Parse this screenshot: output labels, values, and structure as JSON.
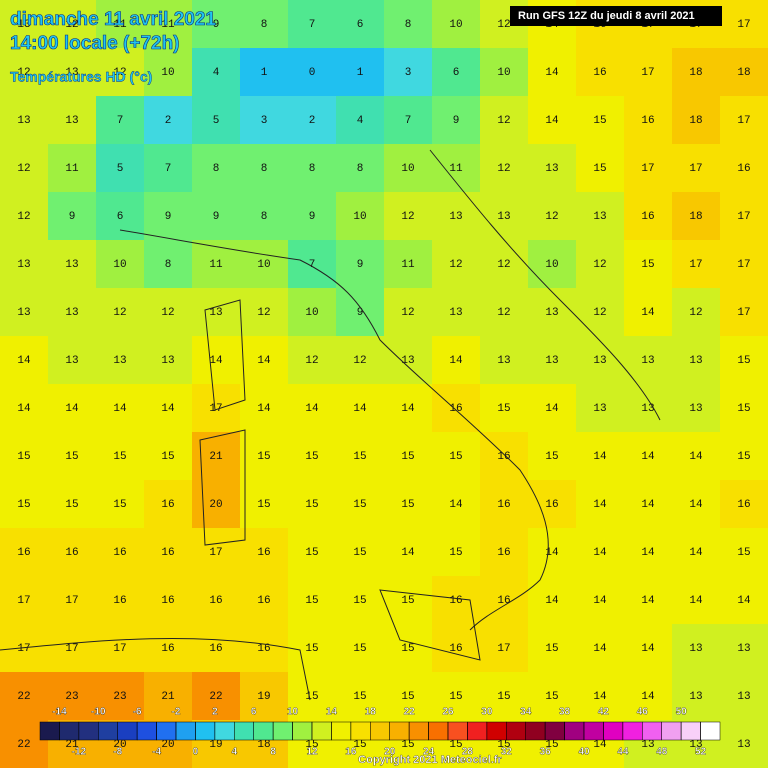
{
  "header": {
    "date": "dimanche 11 avril 2021",
    "time": "14:00 locale (+72h)",
    "field": "Températures HD (°c)",
    "run": "Run GFS 12Z du jeudi 8 avril 2021"
  },
  "temperature_grid": [
    [
      13,
      12,
      11,
      11,
      9,
      8,
      7,
      6,
      8,
      10,
      12,
      14,
      16,
      17,
      17,
      17
    ],
    [
      12,
      13,
      12,
      10,
      4,
      1,
      0,
      1,
      3,
      6,
      10,
      14,
      16,
      17,
      18,
      18
    ],
    [
      13,
      13,
      7,
      2,
      5,
      3,
      2,
      4,
      7,
      9,
      12,
      14,
      15,
      16,
      18,
      17
    ],
    [
      12,
      11,
      5,
      7,
      8,
      8,
      8,
      8,
      10,
      11,
      12,
      13,
      15,
      17,
      17,
      16
    ],
    [
      12,
      9,
      6,
      9,
      9,
      8,
      9,
      10,
      12,
      13,
      13,
      12,
      13,
      16,
      18,
      17
    ],
    [
      13,
      13,
      10,
      8,
      11,
      10,
      7,
      9,
      11,
      12,
      12,
      10,
      12,
      15,
      17,
      17
    ],
    [
      13,
      13,
      12,
      12,
      13,
      12,
      10,
      9,
      12,
      13,
      12,
      13,
      12,
      14,
      12,
      17
    ],
    [
      14,
      13,
      13,
      13,
      14,
      14,
      12,
      12,
      13,
      14,
      13,
      13,
      13,
      13,
      13,
      15
    ],
    [
      14,
      14,
      14,
      14,
      17,
      14,
      14,
      14,
      14,
      16,
      15,
      14,
      13,
      13,
      13,
      15
    ],
    [
      15,
      15,
      15,
      15,
      21,
      15,
      15,
      15,
      15,
      15,
      16,
      15,
      14,
      14,
      14,
      15
    ],
    [
      15,
      15,
      15,
      16,
      20,
      15,
      15,
      15,
      15,
      14,
      16,
      16,
      14,
      14,
      14,
      16
    ],
    [
      16,
      16,
      16,
      16,
      17,
      16,
      15,
      15,
      14,
      15,
      16,
      14,
      14,
      14,
      14,
      15
    ],
    [
      17,
      17,
      16,
      16,
      16,
      16,
      15,
      15,
      15,
      16,
      16,
      14,
      14,
      14,
      14,
      14
    ],
    [
      17,
      17,
      17,
      16,
      16,
      16,
      15,
      15,
      15,
      16,
      17,
      15,
      14,
      14,
      13,
      13
    ],
    [
      22,
      23,
      23,
      21,
      22,
      19,
      15,
      15,
      15,
      15,
      15,
      15,
      14,
      14,
      13,
      13
    ],
    [
      22,
      21,
      20,
      20,
      19,
      18,
      15,
      15,
      15,
      15,
      15,
      15,
      14,
      13,
      13,
      13
    ]
  ],
  "legend": {
    "ticks": [
      -14,
      -12,
      -10,
      -8,
      -6,
      -4,
      -2,
      0,
      2,
      4,
      6,
      8,
      10,
      12,
      14,
      16,
      18,
      20,
      22,
      24,
      26,
      28,
      30,
      32,
      34,
      36,
      38,
      40,
      42,
      44,
      46,
      48,
      50,
      52
    ],
    "colors": [
      "#1a1a4e",
      "#1f2a6e",
      "#22307f",
      "#1f3fa0",
      "#1a3fc0",
      "#1e50e0",
      "#2070f0",
      "#1fa0f0",
      "#20c0f0",
      "#40d8e0",
      "#40e0b0",
      "#50e890",
      "#70f070",
      "#a0f040",
      "#d0f020",
      "#f0f000",
      "#f8e000",
      "#f8c800",
      "#f8b000",
      "#f89000",
      "#f87000",
      "#f85020",
      "#f02020",
      "#d00000",
      "#b00010",
      "#900020",
      "#800040",
      "#a00080",
      "#c000a0",
      "#e000c0",
      "#f020e0",
      "#f060f0",
      "#f0a0f0",
      "#f8d0f8",
      "#ffffff"
    ]
  },
  "copyright": "Copyright 2021 Meteociel.fr"
}
